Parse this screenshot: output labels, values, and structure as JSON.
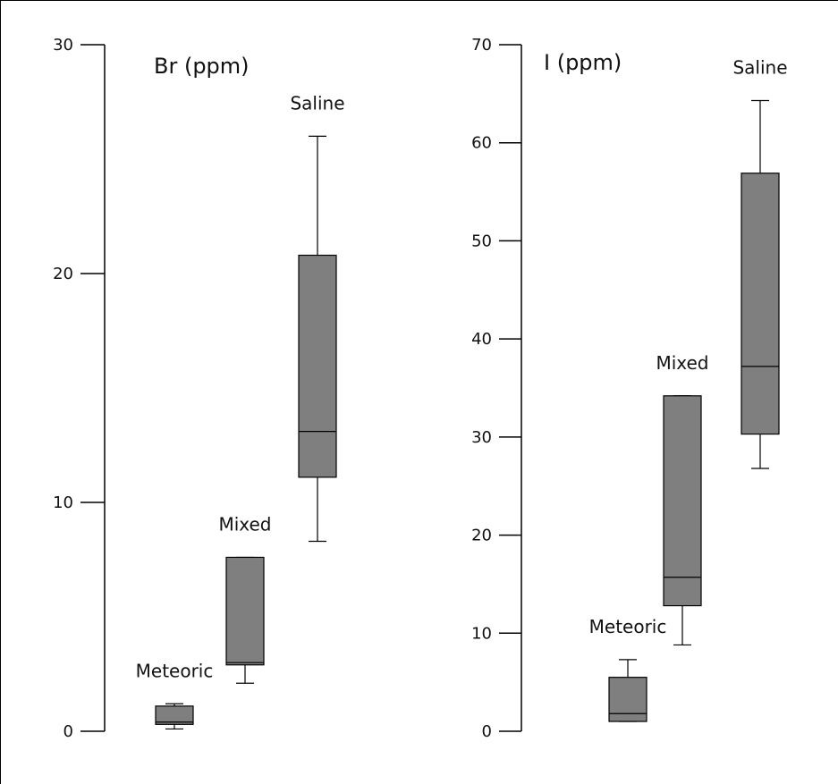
{
  "colors": {
    "box_fill": "#7f7f7f",
    "stroke": "#000000",
    "frame": "#000000",
    "background": "#ffffff"
  },
  "chart_data": [
    {
      "type": "box",
      "title": "Br (ppm)",
      "ylim": [
        0,
        30
      ],
      "yticks": [
        0,
        10,
        20,
        30
      ],
      "ytick_labels": [
        "0",
        "10",
        "20",
        "30"
      ],
      "categories": [
        "Meteoric",
        "Mixed",
        "Saline"
      ],
      "boxes": [
        {
          "label": "Meteoric",
          "whisker_low": 0.1,
          "q1": 0.3,
          "median": 0.4,
          "q3": 1.1,
          "whisker_high": 1.2
        },
        {
          "label": "Mixed",
          "whisker_low": 2.1,
          "q1": 2.9,
          "median": 3.0,
          "q3": 7.6,
          "whisker_high": 7.6
        },
        {
          "label": "Saline",
          "whisker_low": 8.3,
          "q1": 11.1,
          "median": 13.1,
          "q3": 20.8,
          "whisker_high": 26.0
        }
      ]
    },
    {
      "type": "box",
      "title": "I (ppm)",
      "ylim": [
        0,
        70
      ],
      "yticks": [
        0,
        10,
        20,
        30,
        40,
        50,
        60,
        70
      ],
      "ytick_labels": [
        "0",
        "10",
        "20",
        "30",
        "40",
        "50",
        "60",
        "70"
      ],
      "categories": [
        "Meteoric",
        "Mixed",
        "Saline"
      ],
      "boxes": [
        {
          "label": "Meteoric",
          "whisker_low": 1.0,
          "q1": 1.0,
          "median": 1.8,
          "q3": 5.5,
          "whisker_high": 7.3
        },
        {
          "label": "Mixed",
          "whisker_low": 8.8,
          "q1": 12.8,
          "median": 15.7,
          "q3": 34.2,
          "whisker_high": 34.2
        },
        {
          "label": "Saline",
          "whisker_low": 26.8,
          "q1": 30.3,
          "median": 37.2,
          "q3": 56.9,
          "whisker_high": 64.3
        }
      ]
    }
  ]
}
